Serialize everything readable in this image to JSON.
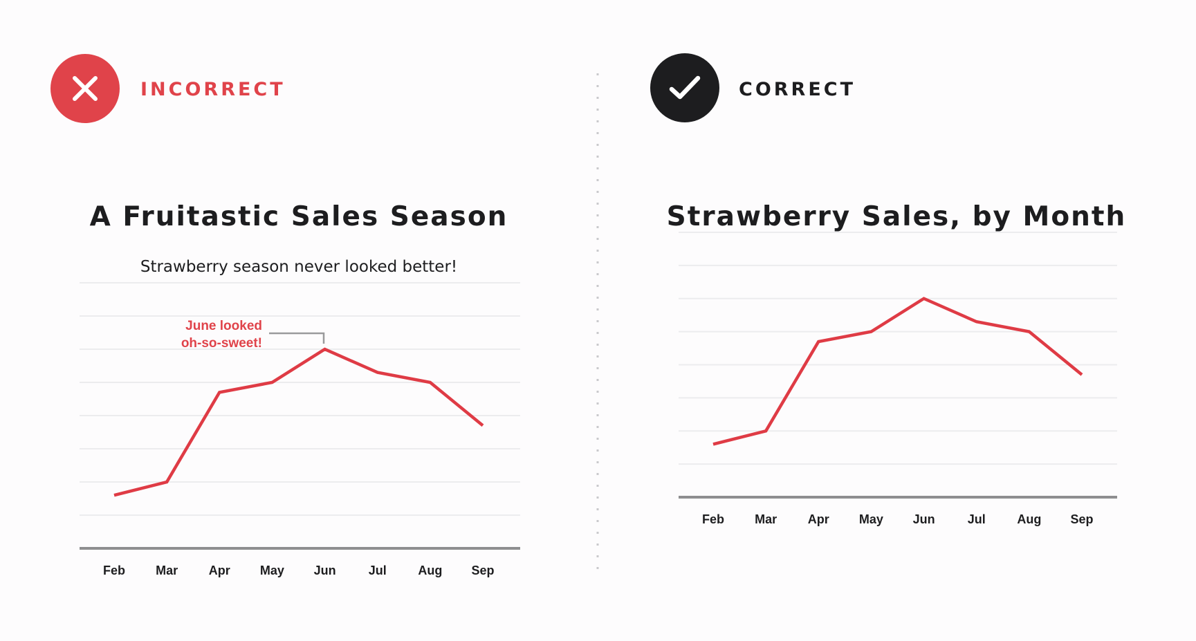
{
  "colors": {
    "incorrect_accent": "#e0434a",
    "correct_accent": "#1d1d1f",
    "line": "#df3b45",
    "gridline": "#ececee",
    "baseline": "#8e8e90",
    "divider": "#c9c9cc",
    "annotation_bracket": "#9a9a9c"
  },
  "incorrect": {
    "icon": "close-x-icon",
    "label": "INCORRECT",
    "title": "A Fruitastic Sales Season",
    "subtitle": "Strawberry season never looked better!",
    "annotation_line1": "June looked",
    "annotation_line2": "oh-so-sweet!"
  },
  "correct": {
    "icon": "checkmark-icon",
    "label": "CORRECT",
    "title": "Strawberry Sales, by Month"
  },
  "chart_data": [
    {
      "type": "line",
      "title": "A Fruitastic Sales Season",
      "subtitle": "Strawberry season never looked better!",
      "categories": [
        "Feb",
        "Mar",
        "Apr",
        "May",
        "Jun",
        "Jul",
        "Aug",
        "Sep"
      ],
      "values": [
        1.6,
        2.0,
        4.7,
        5.0,
        6.0,
        5.3,
        5.0,
        3.7
      ],
      "ylim": [
        0,
        8
      ],
      "grid": true,
      "xlabel": "",
      "ylabel": "",
      "annotation": {
        "category": "Jun",
        "text": "June looked oh-so-sweet!"
      }
    },
    {
      "type": "line",
      "title": "Strawberry Sales, by Month",
      "categories": [
        "Feb",
        "Mar",
        "Apr",
        "May",
        "Jun",
        "Jul",
        "Aug",
        "Sep"
      ],
      "values": [
        1.6,
        2.0,
        4.7,
        5.0,
        6.0,
        5.3,
        5.0,
        3.7
      ],
      "ylim": [
        0,
        8
      ],
      "grid": true,
      "xlabel": "",
      "ylabel": ""
    }
  ]
}
